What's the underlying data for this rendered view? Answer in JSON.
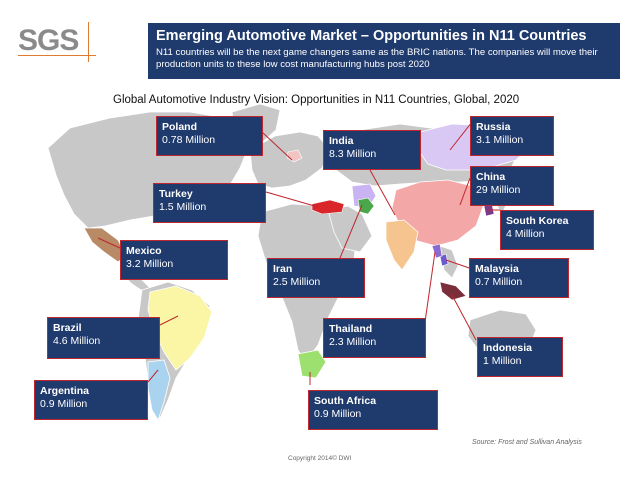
{
  "logo": {
    "text": "SGS"
  },
  "banner": {
    "title": "Emerging Automotive Market – Opportunities in N11 Countries",
    "subtitle": "N11 countries will be the next game changers same as the BRIC nations. The companies will move their production units to these low cost manufacturing hubs post 2020"
  },
  "subtitle": "Global Automotive Industry Vision: Opportunities in N11 Countries, Global, 2020",
  "countries": [
    {
      "name": "Poland",
      "value": "0.78 Million"
    },
    {
      "name": "India",
      "value": "8.3 Million"
    },
    {
      "name": "Russia",
      "value": "3.1 Million"
    },
    {
      "name": "China",
      "value": "29 Million"
    },
    {
      "name": "Turkey",
      "value": "1.5 Million"
    },
    {
      "name": "South Korea",
      "value": "4 Million"
    },
    {
      "name": "Mexico",
      "value": "3.2 Million"
    },
    {
      "name": "Iran",
      "value": "2.5 Million"
    },
    {
      "name": "Malaysia",
      "value": "0.7 Million"
    },
    {
      "name": "Brazil",
      "value": "4.6 Million"
    },
    {
      "name": "Thailand",
      "value": "2.3 Million"
    },
    {
      "name": "Indonesia",
      "value": "1 Million"
    },
    {
      "name": "Argentina",
      "value": "0.9 Million"
    },
    {
      "name": "South Africa",
      "value": "0.9 Million"
    }
  ],
  "source": "Source: Frost and Sullivan Analysis",
  "copyright": "Copyright 2014© DWI",
  "colors": {
    "banner": "#1f3a6d",
    "label_border": "#c0262d",
    "map_land": "#c8c8c8",
    "brazil": "#fbf5a6",
    "argentina": "#a9d3ee",
    "mexico": "#b88a66",
    "china": "#f3a7a7",
    "russia": "#d8c8f3",
    "india": "#f6c48e",
    "iran": "#c9b3f3",
    "turkey": "#d9262b",
    "south_africa": "#9ee06f"
  }
}
